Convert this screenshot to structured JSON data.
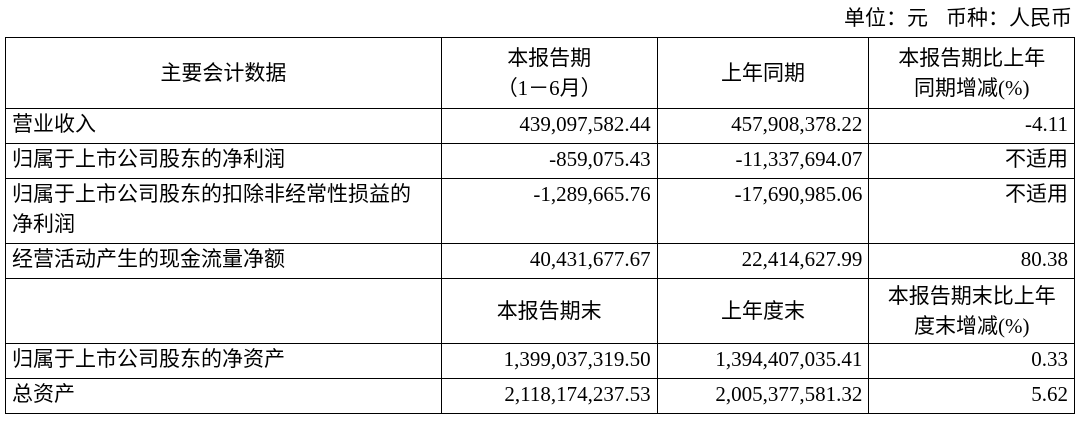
{
  "unit_line": {
    "unit": "单位：元",
    "currency": "币种：人民币"
  },
  "header1": [
    "主要会计数据",
    "本报告期\n（1－6月）",
    "上年同期",
    "本报告期比上年\n同期增减(%)"
  ],
  "rows1": [
    [
      "营业收入",
      "439,097,582.44",
      "457,908,378.22",
      "-4.11"
    ],
    [
      "归属于上市公司股东的净利润",
      "-859,075.43",
      "-11,337,694.07",
      "不适用"
    ],
    [
      "归属于上市公司股东的扣除非经常性损益的净利润",
      "-1,289,665.76",
      "-17,690,985.06",
      "不适用"
    ],
    [
      "经营活动产生的现金流量净额",
      "40,431,677.67",
      "22,414,627.99",
      "80.38"
    ]
  ],
  "header2": [
    "",
    "本报告期末",
    "上年度末",
    "本报告期末比上年度末增减(%)"
  ],
  "rows2": [
    [
      "归属于上市公司股东的净资产",
      "1,399,037,319.50",
      "1,394,407,035.41",
      "0.33"
    ],
    [
      "总资产",
      "2,118,174,237.53",
      "2,005,377,581.32",
      "5.62"
    ]
  ]
}
